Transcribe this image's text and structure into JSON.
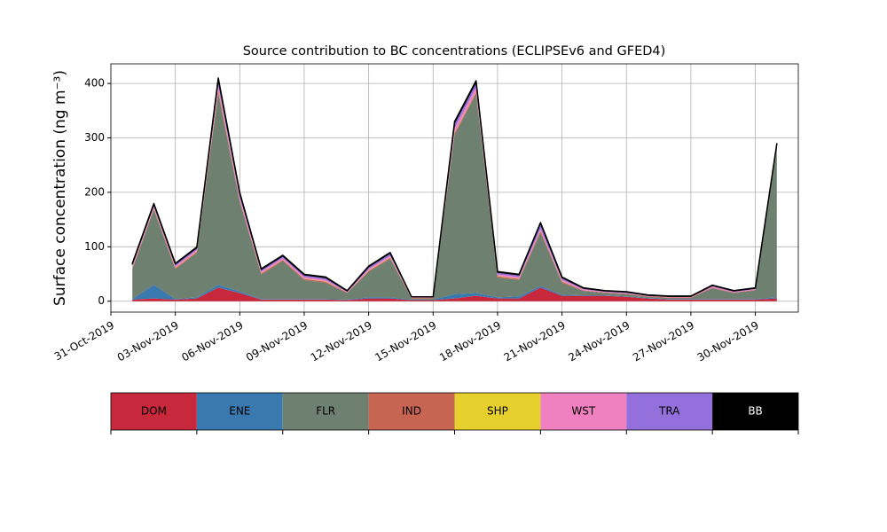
{
  "chart_data": {
    "type": "stacked_area",
    "title": "Source contribution to BC concentrations (ECLIPSEv6 and GFED4)",
    "y_label": "Surface concentration (ng m⁻³)",
    "x": [
      "01-Nov-2019",
      "02-Nov-2019",
      "03-Nov-2019",
      "04-Nov-2019",
      "05-Nov-2019",
      "06-Nov-2019",
      "07-Nov-2019",
      "08-Nov-2019",
      "09-Nov-2019",
      "10-Nov-2019",
      "11-Nov-2019",
      "12-Nov-2019",
      "13-Nov-2019",
      "14-Nov-2019",
      "15-Nov-2019",
      "16-Nov-2019",
      "17-Nov-2019",
      "18-Nov-2019",
      "19-Nov-2019",
      "20-Nov-2019",
      "21-Nov-2019",
      "22-Nov-2019",
      "23-Nov-2019",
      "24-Nov-2019",
      "25-Nov-2019",
      "26-Nov-2019",
      "27-Nov-2019",
      "28-Nov-2019",
      "29-Nov-2019",
      "30-Nov-2019",
      "01-Dec-2019"
    ],
    "series": [
      {
        "name": "DOM",
        "color": "#c8283c",
        "values": [
          3,
          5,
          3,
          5,
          25,
          15,
          3,
          3,
          3,
          3,
          2,
          5,
          5,
          2,
          2,
          5,
          10,
          5,
          5,
          25,
          10,
          10,
          10,
          8,
          5,
          3,
          3,
          3,
          3,
          3,
          5
        ]
      },
      {
        "name": "ENE",
        "color": "#3a78b0",
        "values": [
          1,
          25,
          1,
          2,
          5,
          3,
          1,
          1,
          1,
          1,
          1,
          2,
          2,
          1,
          1,
          8,
          5,
          2,
          4,
          3,
          2,
          1,
          1,
          1,
          1,
          1,
          1,
          1,
          1,
          1,
          2
        ]
      },
      {
        "name": "FLR",
        "color": "#6e8070",
        "values": [
          55,
          138,
          55,
          82,
          352,
          164,
          45,
          70,
          35,
          30,
          12,
          47,
          71,
          2,
          2,
          293,
          366,
          37,
          30,
          98,
          22,
          8,
          4,
          4,
          2,
          2,
          2,
          20,
          11,
          16,
          272
        ]
      },
      {
        "name": "IND",
        "color": "#c86452",
        "values": [
          2,
          2,
          2,
          2,
          5,
          3,
          2,
          2,
          2,
          2,
          1,
          2,
          2,
          1,
          1,
          3,
          3,
          2,
          2,
          3,
          2,
          1,
          1,
          1,
          1,
          1,
          1,
          1,
          1,
          1,
          2
        ]
      },
      {
        "name": "SHP",
        "color": "#e6d02e",
        "values": [
          0.5,
          0.5,
          0.5,
          0.5,
          1,
          0.5,
          0.5,
          0.5,
          0.5,
          0.5,
          0,
          0.5,
          0.5,
          0,
          0,
          1,
          1,
          0.5,
          0.5,
          0.5,
          0.5,
          0,
          0,
          0,
          0,
          0,
          0,
          0,
          0,
          0,
          0.5
        ]
      },
      {
        "name": "WST",
        "color": "#f080c0",
        "values": [
          3,
          3,
          3,
          3,
          8,
          5,
          3,
          3,
          3,
          3,
          1,
          3,
          3,
          1,
          1,
          8,
          8,
          3,
          3,
          4,
          3,
          2,
          1,
          1,
          1,
          1,
          1,
          2,
          1,
          1,
          3
        ]
      },
      {
        "name": "TRA",
        "color": "#9370db",
        "values": [
          4,
          5,
          4,
          4,
          12,
          8,
          4,
          4,
          4,
          4,
          2,
          4,
          5,
          1,
          1,
          10,
          10,
          4,
          4,
          10,
          4,
          2,
          2,
          2,
          1,
          1,
          1,
          2,
          2,
          2,
          4
        ]
      },
      {
        "name": "BB",
        "color": "#000000",
        "values": [
          1,
          1,
          1,
          1,
          2,
          1,
          1,
          1,
          1,
          1,
          0.5,
          1,
          1,
          0,
          0,
          2,
          2,
          1,
          1,
          1,
          1,
          0.5,
          0.5,
          0.5,
          0.5,
          0.5,
          0.5,
          0.5,
          0.5,
          0.5,
          1
        ]
      }
    ],
    "xlim": [
      "31-Oct-2019",
      "02-Dec-2019"
    ],
    "xticks": [
      "31-Oct-2019",
      "03-Nov-2019",
      "06-Nov-2019",
      "09-Nov-2019",
      "12-Nov-2019",
      "15-Nov-2019",
      "18-Nov-2019",
      "21-Nov-2019",
      "24-Nov-2019",
      "27-Nov-2019",
      "30-Nov-2019"
    ],
    "ylim": [
      -20,
      436
    ],
    "yticks": [
      0,
      100,
      200,
      300,
      400
    ],
    "grid": true
  }
}
